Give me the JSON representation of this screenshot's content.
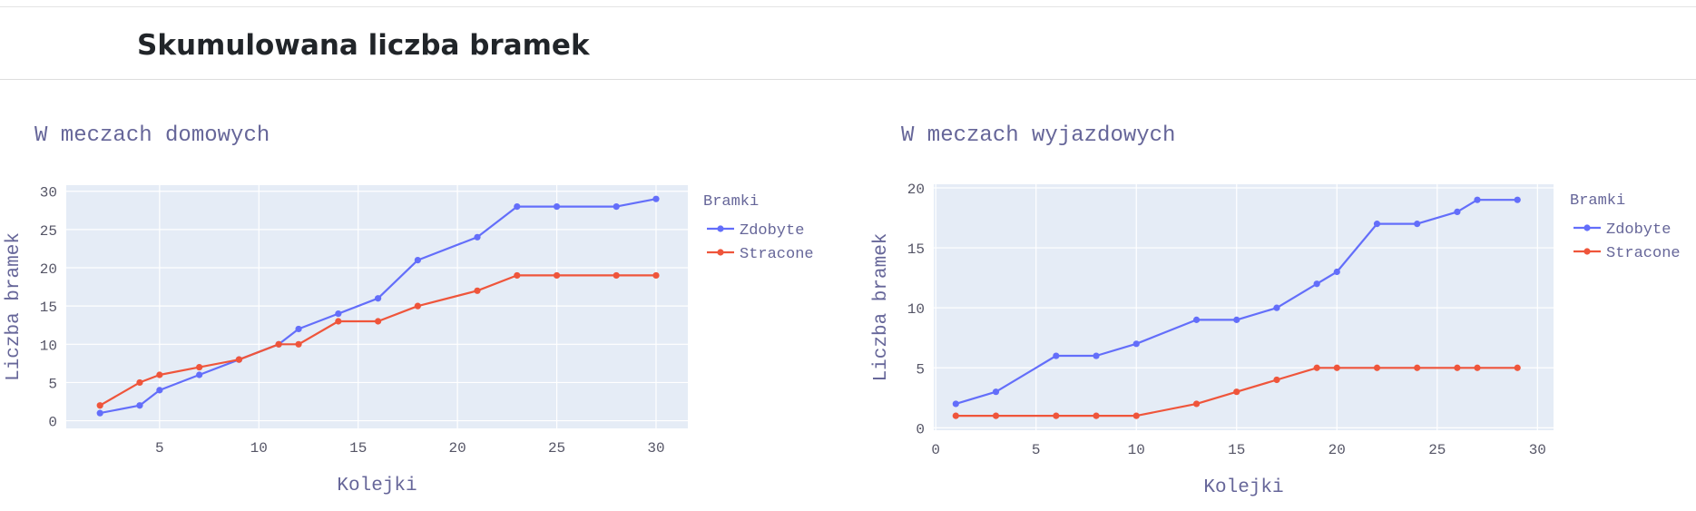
{
  "page": {
    "title": "Skumulowana liczba bramek"
  },
  "colors": {
    "plot_bg": "#e5ecf6",
    "grid": "#ffffff",
    "text": "#666699",
    "zdobyte": "#636efa",
    "stracone": "#ef553b"
  },
  "chart_data": [
    {
      "type": "line",
      "title": "W meczach domowych",
      "xlabel": "Kolejki",
      "ylabel": "Liczba bramek",
      "xlim": [
        0.3,
        31.6
      ],
      "ylim": [
        -1,
        30.8
      ],
      "xticks": [
        5,
        10,
        15,
        20,
        25,
        30
      ],
      "yticks": [
        0,
        5,
        10,
        15,
        20,
        25,
        30
      ],
      "grid": true,
      "legend": {
        "title": "Bramki",
        "position": "right"
      },
      "series": [
        {
          "name": "Zdobyte",
          "color": "#636efa",
          "x": [
            2,
            4,
            5,
            7,
            9,
            11,
            12,
            14,
            16,
            18,
            21,
            23,
            25,
            28,
            30
          ],
          "y": [
            1,
            2,
            4,
            6,
            8,
            10,
            12,
            14,
            16,
            21,
            24,
            28,
            28,
            28,
            29
          ]
        },
        {
          "name": "Stracone",
          "color": "#ef553b",
          "x": [
            2,
            4,
            5,
            7,
            9,
            11,
            12,
            14,
            16,
            18,
            21,
            23,
            25,
            28,
            30
          ],
          "y": [
            2,
            5,
            6,
            7,
            8,
            10,
            10,
            13,
            13,
            15,
            17,
            19,
            19,
            19,
            19
          ]
        }
      ]
    },
    {
      "type": "line",
      "title": "W meczach wyjazdowych",
      "xlabel": "Kolejki",
      "ylabel": "Liczba bramek",
      "xlim": [
        -0.1,
        30.8
      ],
      "ylim": [
        -0.2,
        20.3
      ],
      "xticks": [
        0,
        5,
        10,
        15,
        20,
        25,
        30
      ],
      "yticks": [
        0,
        5,
        10,
        15,
        20
      ],
      "grid": true,
      "legend": {
        "title": "Bramki",
        "position": "right"
      },
      "series": [
        {
          "name": "Zdobyte",
          "color": "#636efa",
          "x": [
            1,
            3,
            6,
            8,
            10,
            13,
            15,
            17,
            19,
            20,
            22,
            24,
            26,
            27,
            29
          ],
          "y": [
            2,
            3,
            6,
            6,
            7,
            9,
            9,
            10,
            12,
            13,
            17,
            17,
            18,
            19,
            19
          ]
        },
        {
          "name": "Stracone",
          "color": "#ef553b",
          "x": [
            1,
            3,
            6,
            8,
            10,
            13,
            15,
            17,
            19,
            20,
            22,
            24,
            26,
            27,
            29
          ],
          "y": [
            1,
            1,
            1,
            1,
            1,
            2,
            3,
            4,
            5,
            5,
            5,
            5,
            5,
            5,
            5
          ]
        }
      ]
    }
  ]
}
